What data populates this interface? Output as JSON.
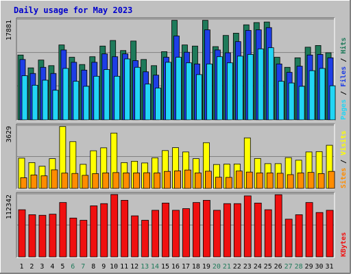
{
  "title": "Daily usage for May 2023",
  "colors": {
    "background": "#C0C0C0",
    "plot_bg": "#C0C0C0",
    "title_text": "#0000CC",
    "hits": "#1E7A5A",
    "files": "#1E3EE6",
    "pages": "#22D5F5",
    "visits": "#FFFF00",
    "sites": "#FF8C00",
    "kbytes": "#F01010",
    "weekday_label": "#000000",
    "weekend_label": "#1E7A5A"
  },
  "chart_data": [
    {
      "type": "bar",
      "panel": "hits-files-pages",
      "ymax_label": "17881",
      "ylim": [
        0,
        17881
      ],
      "grid": true,
      "axis_label_parts": [
        {
          "text": "Pages",
          "color": "#22D5F5"
        },
        {
          "text": " / ",
          "color": "#000000"
        },
        {
          "text": "Files",
          "color": "#1E3EE6"
        },
        {
          "text": " / ",
          "color": "#000000"
        },
        {
          "text": "Hits",
          "color": "#1E7A5A"
        }
      ],
      "categories": [
        "1",
        "2",
        "3",
        "4",
        "5",
        "6",
        "7",
        "8",
        "9",
        "10",
        "11",
        "12",
        "13",
        "14",
        "15",
        "16",
        "17",
        "18",
        "19",
        "20",
        "21",
        "22",
        "23",
        "24",
        "25",
        "26",
        "27",
        "28",
        "29",
        "30",
        "31"
      ],
      "series": [
        {
          "name": "Hits",
          "color": "#1E7A5A",
          "values": [
            11600,
            9300,
            10700,
            9700,
            13400,
            11200,
            9900,
            11300,
            13200,
            14200,
            12400,
            14100,
            10800,
            9700,
            12200,
            17800,
            13400,
            13200,
            17800,
            13100,
            15100,
            15500,
            17000,
            17400,
            17500,
            11200,
            9400,
            11100,
            13000,
            13300,
            12000
          ]
        },
        {
          "name": "Files",
          "color": "#1E3EE6",
          "values": [
            10800,
            8300,
            9400,
            8300,
            12500,
            10300,
            8900,
            10300,
            11800,
            11300,
            11800,
            10600,
            8600,
            8000,
            11200,
            15000,
            12100,
            10000,
            16100,
            12500,
            12000,
            14000,
            16000,
            16100,
            16500,
            10000,
            8500,
            9600,
            11600,
            11700,
            11100
          ]
        },
        {
          "name": "Pages",
          "color": "#22D5F5",
          "values": [
            7900,
            6200,
            7100,
            5300,
            9200,
            6900,
            6000,
            7800,
            9000,
            7800,
            10900,
            9400,
            6400,
            5700,
            10300,
            11200,
            10200,
            8100,
            10000,
            11300,
            10200,
            11400,
            11700,
            12700,
            12900,
            6900,
            6600,
            6000,
            8800,
            9200,
            6100
          ]
        }
      ]
    },
    {
      "type": "bar",
      "panel": "visits-sites",
      "ymax_label": "3629",
      "ylim": [
        0,
        3629
      ],
      "grid": true,
      "axis_label_parts": [
        {
          "text": "Sites",
          "color": "#FF8C00"
        },
        {
          "text": " / ",
          "color": "#000000"
        },
        {
          "text": "Visits",
          "color": "#FFFF00"
        }
      ],
      "categories": [
        "1",
        "2",
        "3",
        "4",
        "5",
        "6",
        "7",
        "8",
        "9",
        "10",
        "11",
        "12",
        "13",
        "14",
        "15",
        "16",
        "17",
        "18",
        "19",
        "20",
        "21",
        "22",
        "23",
        "24",
        "25",
        "26",
        "27",
        "28",
        "29",
        "30",
        "31"
      ],
      "series": [
        {
          "name": "Visits",
          "color": "#FFFF00",
          "values": [
            1760,
            1500,
            1290,
            1730,
            3600,
            2720,
            1400,
            2190,
            2360,
            3220,
            1500,
            1580,
            1480,
            1780,
            2200,
            2370,
            2120,
            1730,
            2660,
            1390,
            1410,
            1420,
            2940,
            1740,
            1440,
            1440,
            1790,
            1640,
            2120,
            2140,
            2510
          ]
        },
        {
          "name": "Sites",
          "color": "#FF8C00",
          "values": [
            620,
            780,
            730,
            1080,
            890,
            870,
            760,
            860,
            900,
            920,
            900,
            900,
            910,
            900,
            990,
            1020,
            1070,
            900,
            1000,
            650,
            640,
            1010,
            950,
            900,
            900,
            880,
            800,
            900,
            930,
            860,
            990
          ]
        }
      ]
    },
    {
      "type": "bar",
      "panel": "kbytes",
      "ymax_label": "112342",
      "ylim": [
        0,
        112342
      ],
      "grid": true,
      "axis_label_parts": [
        {
          "text": "KBytes",
          "color": "#F01010"
        }
      ],
      "categories": [
        "1",
        "2",
        "3",
        "4",
        "5",
        "6",
        "7",
        "8",
        "9",
        "10",
        "11",
        "12",
        "13",
        "14",
        "15",
        "16",
        "17",
        "18",
        "19",
        "20",
        "21",
        "22",
        "23",
        "24",
        "25",
        "26",
        "27",
        "28",
        "29",
        "30",
        "31"
      ],
      "series": [
        {
          "name": "KBytes",
          "color": "#F01010",
          "values": [
            85000,
            76000,
            75000,
            77000,
            98000,
            70000,
            66000,
            92000,
            96000,
            112300,
            102000,
            74000,
            66000,
            84000,
            97000,
            84000,
            87000,
            98000,
            102000,
            84000,
            96000,
            96000,
            110000,
            97000,
            85000,
            112000,
            68000,
            76000,
            98000,
            80000,
            84000
          ]
        }
      ]
    }
  ]
}
